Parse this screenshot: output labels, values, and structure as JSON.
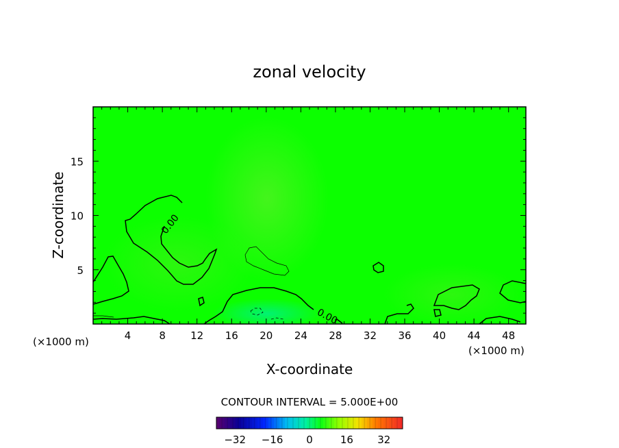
{
  "chart_data": {
    "type": "heatmap",
    "title": "zonal velocity",
    "xlabel": "X-coordinate",
    "ylabel": "Z-coordinate",
    "x_unit_left": "(×1000 m)",
    "x_unit_right": "(×1000 m)",
    "xlim": [
      0,
      50
    ],
    "ylim": [
      0,
      20
    ],
    "x_ticks": [
      4,
      8,
      12,
      16,
      20,
      24,
      28,
      32,
      36,
      40,
      44,
      48
    ],
    "y_ticks": [
      5,
      10,
      15
    ],
    "contour_label": "0.00",
    "contour_interval_text": "CONTOUR INTERVAL = 5.000E+00",
    "colorbar": {
      "range": [
        -40,
        40
      ],
      "ticks": [
        -32,
        -16,
        0,
        16,
        32
      ],
      "tick_labels": [
        "−32",
        "−16",
        "0",
        "16",
        "32"
      ]
    },
    "field_color": "#0cff00",
    "grid": false
  }
}
